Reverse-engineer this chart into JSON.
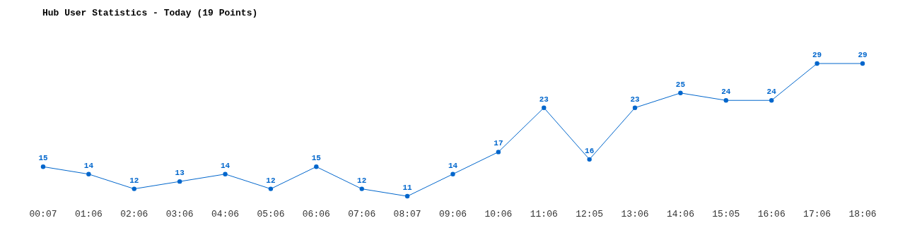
{
  "chart_data": {
    "type": "line",
    "title": "Hub User Statistics - Today (19 Points)",
    "categories": [
      "00:07",
      "01:06",
      "02:06",
      "03:06",
      "04:06",
      "05:06",
      "06:06",
      "07:06",
      "08:07",
      "09:06",
      "10:06",
      "11:06",
      "12:05",
      "13:06",
      "14:06",
      "15:05",
      "16:06",
      "17:06",
      "18:06"
    ],
    "series": [
      {
        "color": "#0066cc",
        "values": [
          15,
          14,
          12,
          13,
          14,
          12,
          15,
          12,
          11,
          14,
          17,
          23,
          16,
          23,
          25,
          24,
          24,
          29,
          29
        ]
      }
    ],
    "data_labels": true,
    "marker": "circle"
  }
}
